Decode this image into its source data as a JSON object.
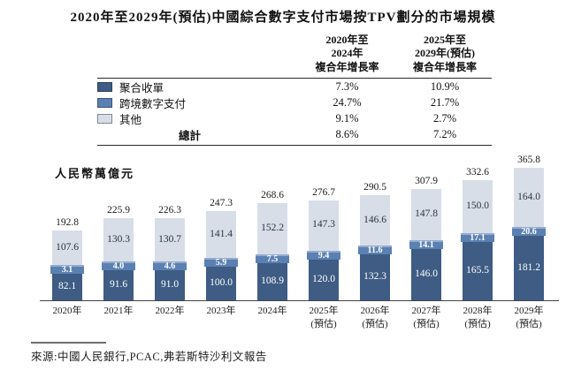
{
  "title": "2020年至2029年(預估)中國綜合數字支付市場按TPV劃分的市場規模",
  "colors": {
    "aggregate_acquiring": "#3e5c84",
    "cross_border": "#5b80b2",
    "others": "#d8dee8"
  },
  "cagr_table": {
    "col_headers": {
      "period1": "2020年至\n2024年\n複合年增長率",
      "period2": "2025年至\n2029年(預估)\n複合年增長率"
    },
    "rows": [
      {
        "label": "聚合收單",
        "cagr1": "7.3%",
        "cagr2": "10.9%"
      },
      {
        "label": "跨境數字支付",
        "cagr1": "24.7%",
        "cagr2": "21.7%"
      },
      {
        "label": "其他",
        "cagr1": "9.1%",
        "cagr2": "2.7%"
      }
    ],
    "total": {
      "label": "總計",
      "cagr1": "8.6%",
      "cagr2": "7.2%"
    }
  },
  "chart_data": {
    "type": "bar",
    "stacked": true,
    "title": "2020年至2029年(預估)中國綜合數字支付市場按TPV劃分的市場規模",
    "ylabel": "人民幣萬億元",
    "xlabel": "",
    "ylim": [
      0,
      380
    ],
    "grid": false,
    "legend_position": "table-top-left",
    "categories": [
      "2020年",
      "2021年",
      "2022年",
      "2023年",
      "2024年",
      "2025年\n(預估)",
      "2026年\n(預估)",
      "2027年\n(預估)",
      "2028年\n(預估)",
      "2029年\n(預估)"
    ],
    "series": [
      {
        "name": "聚合收單",
        "color": "#3e5c84",
        "values": [
          82.1,
          91.6,
          91.0,
          100.0,
          108.9,
          120.0,
          132.3,
          146.0,
          165.5,
          181.2
        ]
      },
      {
        "name": "跨境數字支付",
        "color": "#5b80b2",
        "values": [
          3.1,
          4.0,
          4.6,
          5.9,
          7.5,
          9.4,
          11.6,
          14.1,
          17.1,
          20.6
        ]
      },
      {
        "name": "其他",
        "color": "#d8dee8",
        "values": [
          107.6,
          130.3,
          130.7,
          141.4,
          152.2,
          147.3,
          146.6,
          147.8,
          150.0,
          164.0
        ]
      }
    ],
    "totals": [
      192.8,
      225.9,
      226.3,
      247.3,
      268.6,
      276.7,
      290.5,
      307.9,
      332.6,
      365.8
    ]
  },
  "source": "來源:中國人民銀行,PCAC,弗若斯特沙利文報告"
}
